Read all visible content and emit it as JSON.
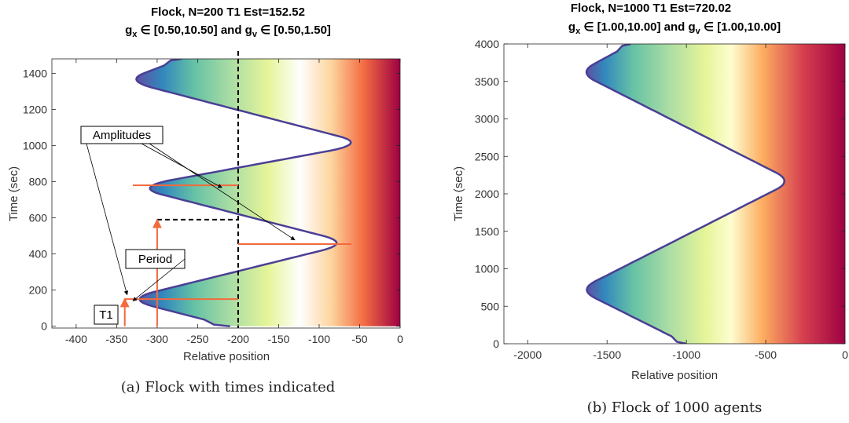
{
  "chart_data": [
    {
      "type": "area",
      "title_line1": "Flock, N=200 T1 Est=152.52",
      "title_line2": [
        "g",
        "x",
        " ∈ [0.50,10.50] and g",
        "v",
        " ∈ [0.50,1.50]"
      ],
      "xlabel": "Relative position",
      "ylabel": "Time (sec)",
      "xlim": [
        -430,
        0
      ],
      "ylim": [
        -10,
        1480
      ],
      "xticks": [
        -400,
        -350,
        -300,
        -250,
        -200,
        -150,
        -100,
        -50,
        0
      ],
      "yticks": [
        0,
        200,
        400,
        600,
        800,
        1000,
        1200,
        1400
      ],
      "grid": false,
      "colormap": "spectral",
      "envelope": [
        {
          "t": 0,
          "x": -210
        },
        {
          "t": 150,
          "x": -340
        },
        {
          "t": 460,
          "x": -60
        },
        {
          "t": 770,
          "x": -330
        },
        {
          "t": 1010,
          "x": -40
        },
        {
          "t": 1360,
          "x": -340
        },
        {
          "t": 1480,
          "x": -270
        }
      ],
      "band_width": 70,
      "annotations": {
        "amplitudes_label": "Amplitudes",
        "period_label": "Period",
        "t1_label": "T1",
        "dashed_vertical_x": -200,
        "dashed_horizontal_y": 590,
        "amplitude_lines": [
          {
            "y": 150,
            "x_from": -340,
            "x_to": -200
          },
          {
            "y": 455,
            "x_from": -200,
            "x_to": -60
          },
          {
            "y": 780,
            "x_from": -330,
            "x_to": -200
          }
        ],
        "period_arrow": {
          "x": -300,
          "y_from": 0,
          "y_to": 590
        },
        "t1_arrow": {
          "x": -340,
          "y_from": 0,
          "y_to": 152.52
        }
      }
    },
    {
      "type": "area",
      "title_line1": "Flock, N=1000 T1 Est=720.02",
      "title_line2": [
        "g",
        "x",
        " ∈ [1.00,10.00] and g",
        "v",
        " ∈ [1.00,10.00]"
      ],
      "xlabel": "Relative position",
      "ylabel": "Time (sec)",
      "xlim": [
        -2150,
        0
      ],
      "ylim": [
        0,
        4000
      ],
      "xticks": [
        -2000,
        -1500,
        -1000,
        -500,
        0
      ],
      "yticks": [
        0,
        500,
        1000,
        1500,
        2000,
        2500,
        3000,
        3500,
        4000
      ],
      "grid": false,
      "colormap": "spectral",
      "envelope": [
        {
          "t": 0,
          "x": -1000
        },
        {
          "t": 720,
          "x": -1680
        },
        {
          "t": 2170,
          "x": -330
        },
        {
          "t": 3620,
          "x": -1680
        },
        {
          "t": 4000,
          "x": -1350
        }
      ],
      "band_width": 1000
    }
  ],
  "captions": [
    "(a) Flock with times indicated",
    "(b) Flock of 1000 agents"
  ]
}
